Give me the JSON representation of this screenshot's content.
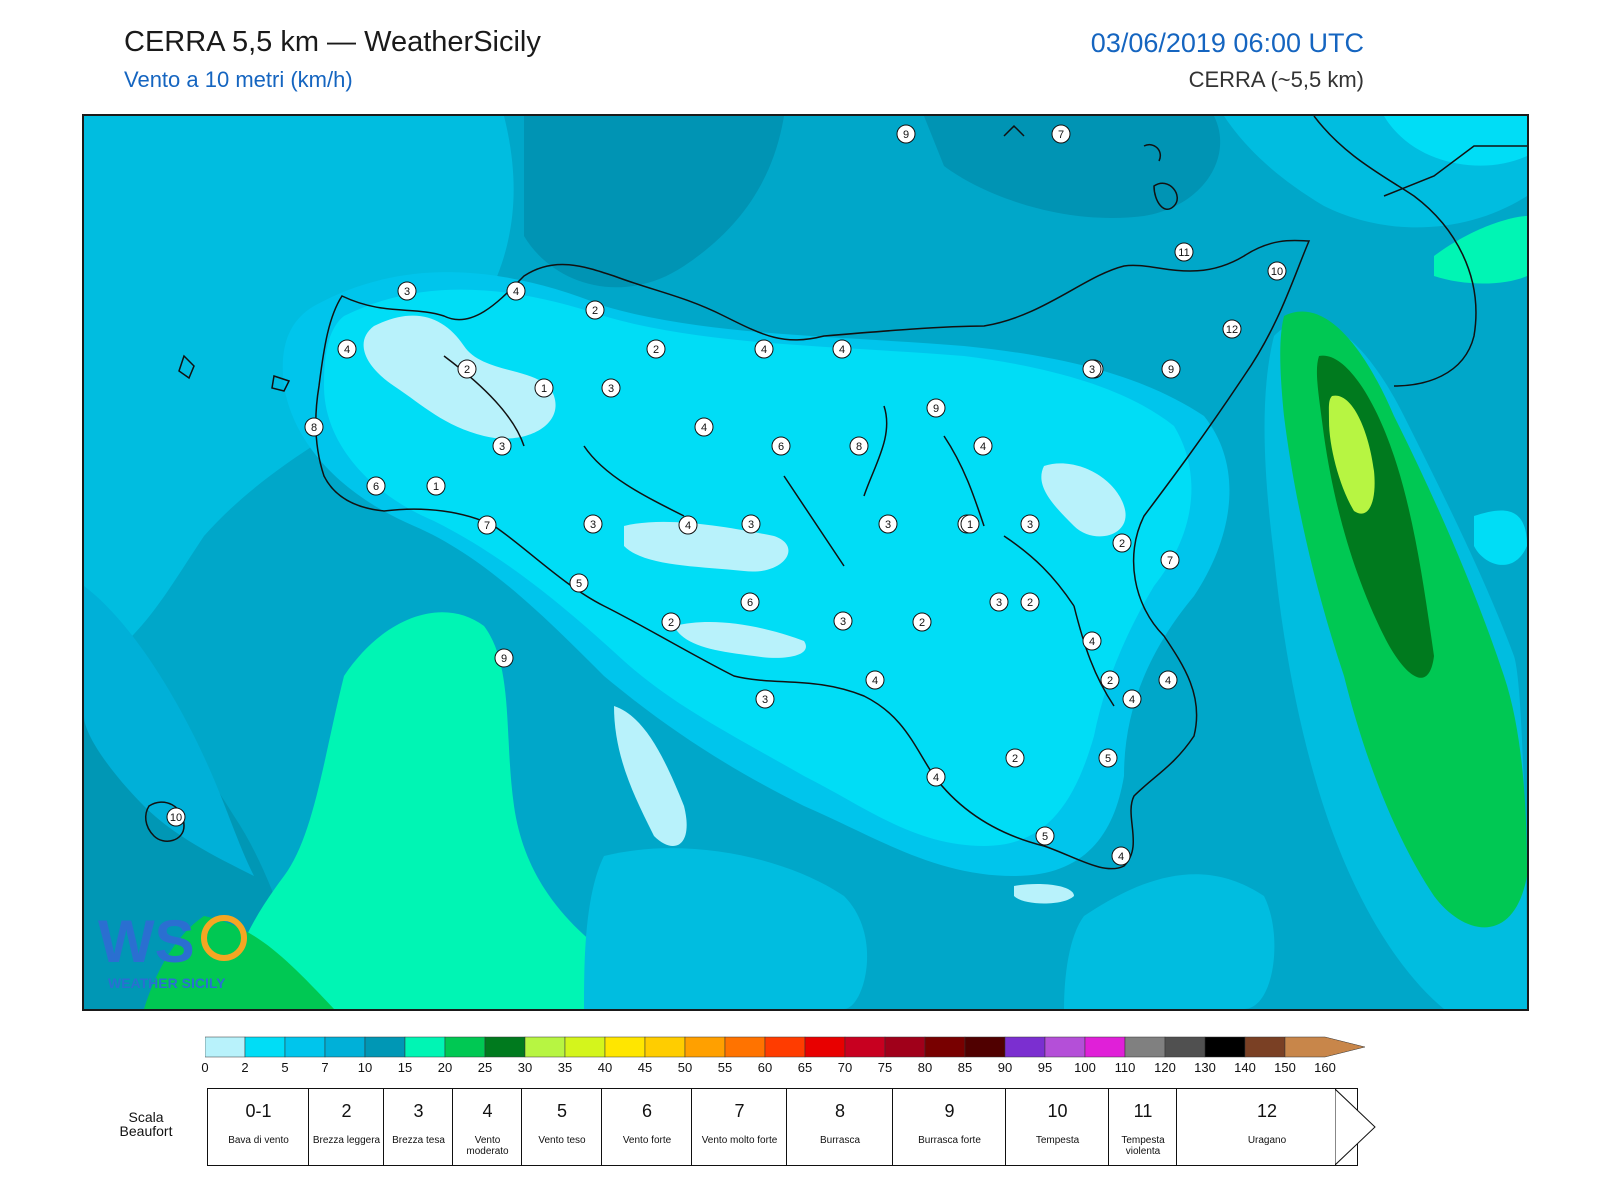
{
  "header": {
    "title": "CERRA 5,5 km — WeatherSicily",
    "subtitle": "Vento a 10 metri (km/h)",
    "datetime": "03/06/2019 06:00 UTC",
    "model": "CERRA (~5,5 km)"
  },
  "map": {
    "station_values": [
      "9",
      "7",
      "11",
      "10",
      "12",
      "3",
      "4",
      "2",
      "2",
      "4",
      "1",
      "3",
      "4",
      "2",
      "4",
      "8",
      "9",
      "8",
      "1",
      "3",
      "4",
      "6",
      "8",
      "9",
      "4",
      "7",
      "3",
      "6",
      "9",
      "7",
      "4",
      "3",
      "3",
      "1",
      "3",
      "2",
      "2",
      "5",
      "6",
      "3",
      "2",
      "3",
      "2",
      "4",
      "4",
      "2",
      "4",
      "4",
      "5",
      "2",
      "5",
      "4",
      "3",
      "4",
      "10",
      "1",
      "3"
    ]
  },
  "logo": {
    "text": "WEATHER SICILY",
    "mark": "WS"
  },
  "colorbar": {
    "ticks": [
      "0",
      "2",
      "5",
      "7",
      "10",
      "15",
      "20",
      "25",
      "30",
      "35",
      "40",
      "45",
      "50",
      "55",
      "60",
      "65",
      "70",
      "75",
      "80",
      "85",
      "90",
      "95",
      "100",
      "110",
      "120",
      "130",
      "140",
      "150",
      "160"
    ],
    "colors": [
      "#b8f2fb",
      "#00ddf6",
      "#00c5ec",
      "#00b0d8",
      "#0097b5",
      "#00f5b4",
      "#00c853",
      "#007a1e",
      "#b7f542",
      "#d4f51c",
      "#ffe600",
      "#ffcd00",
      "#ffa000",
      "#ff7300",
      "#ff3c00",
      "#e80000",
      "#c80020",
      "#a0001a",
      "#780000",
      "#500000",
      "#7b2fd0",
      "#b44fd8",
      "#e020d8",
      "#808080",
      "#505050",
      "#000000",
      "#7a4024",
      "#c8864a"
    ]
  },
  "beaufort": {
    "label": "Scala Beaufort",
    "cells": [
      {
        "num": "0-1",
        "desc": "Bava di vento"
      },
      {
        "num": "2",
        "desc": "Brezza leggera"
      },
      {
        "num": "3",
        "desc": "Brezza tesa"
      },
      {
        "num": "4",
        "desc": "Vento moderato"
      },
      {
        "num": "5",
        "desc": "Vento teso"
      },
      {
        "num": "6",
        "desc": "Vento forte"
      },
      {
        "num": "7",
        "desc": "Vento molto forte"
      },
      {
        "num": "8",
        "desc": "Burrasca"
      },
      {
        "num": "9",
        "desc": "Burrasca forte"
      },
      {
        "num": "10",
        "desc": "Tempesta"
      },
      {
        "num": "11",
        "desc": "Tempesta violenta"
      },
      {
        "num": "12",
        "desc": "Uragano"
      }
    ]
  }
}
